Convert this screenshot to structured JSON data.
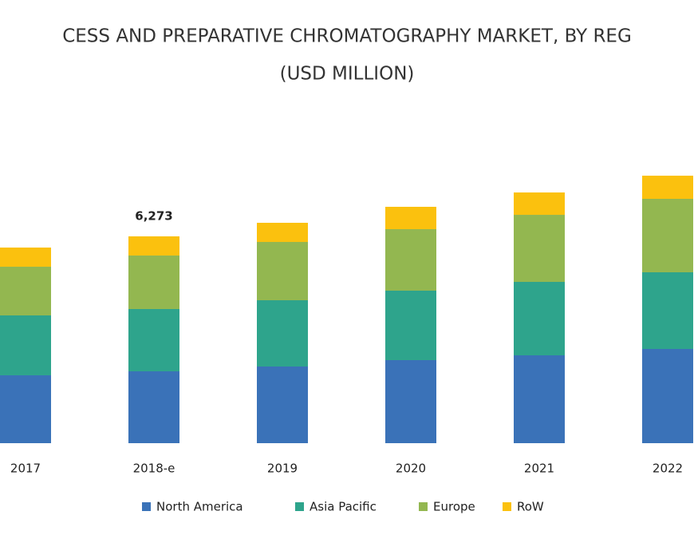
{
  "chart_data": {
    "type": "stacked_bar",
    "title": "CESS AND PREPARATIVE CHROMATOGRAPHY MARKET, BY REG",
    "subtitle": "(USD MILLION)",
    "categories": [
      "2017",
      "2018-e",
      "2019",
      "2020",
      "2021",
      "2022"
    ],
    "series": [
      {
        "name": "North America",
        "color": "#3a72b8",
        "values": [
          2059,
          2180,
          2325,
          2519,
          2664,
          2858
        ]
      },
      {
        "name": "Asia Pacific",
        "color": "#2ea48c",
        "values": [
          1816,
          1889,
          2010,
          2107,
          2228,
          2325
        ]
      },
      {
        "name": "Europe",
        "color": "#93b750",
        "values": [
          1477,
          1623,
          1768,
          1865,
          2034,
          2228
        ]
      },
      {
        "name": "RoW",
        "color": "#fbc10e",
        "values": [
          581,
          581,
          581,
          678,
          678,
          702
        ]
      }
    ],
    "annotations": [
      {
        "category": "2018-e",
        "value": 6273,
        "text": "6,273"
      }
    ]
  }
}
